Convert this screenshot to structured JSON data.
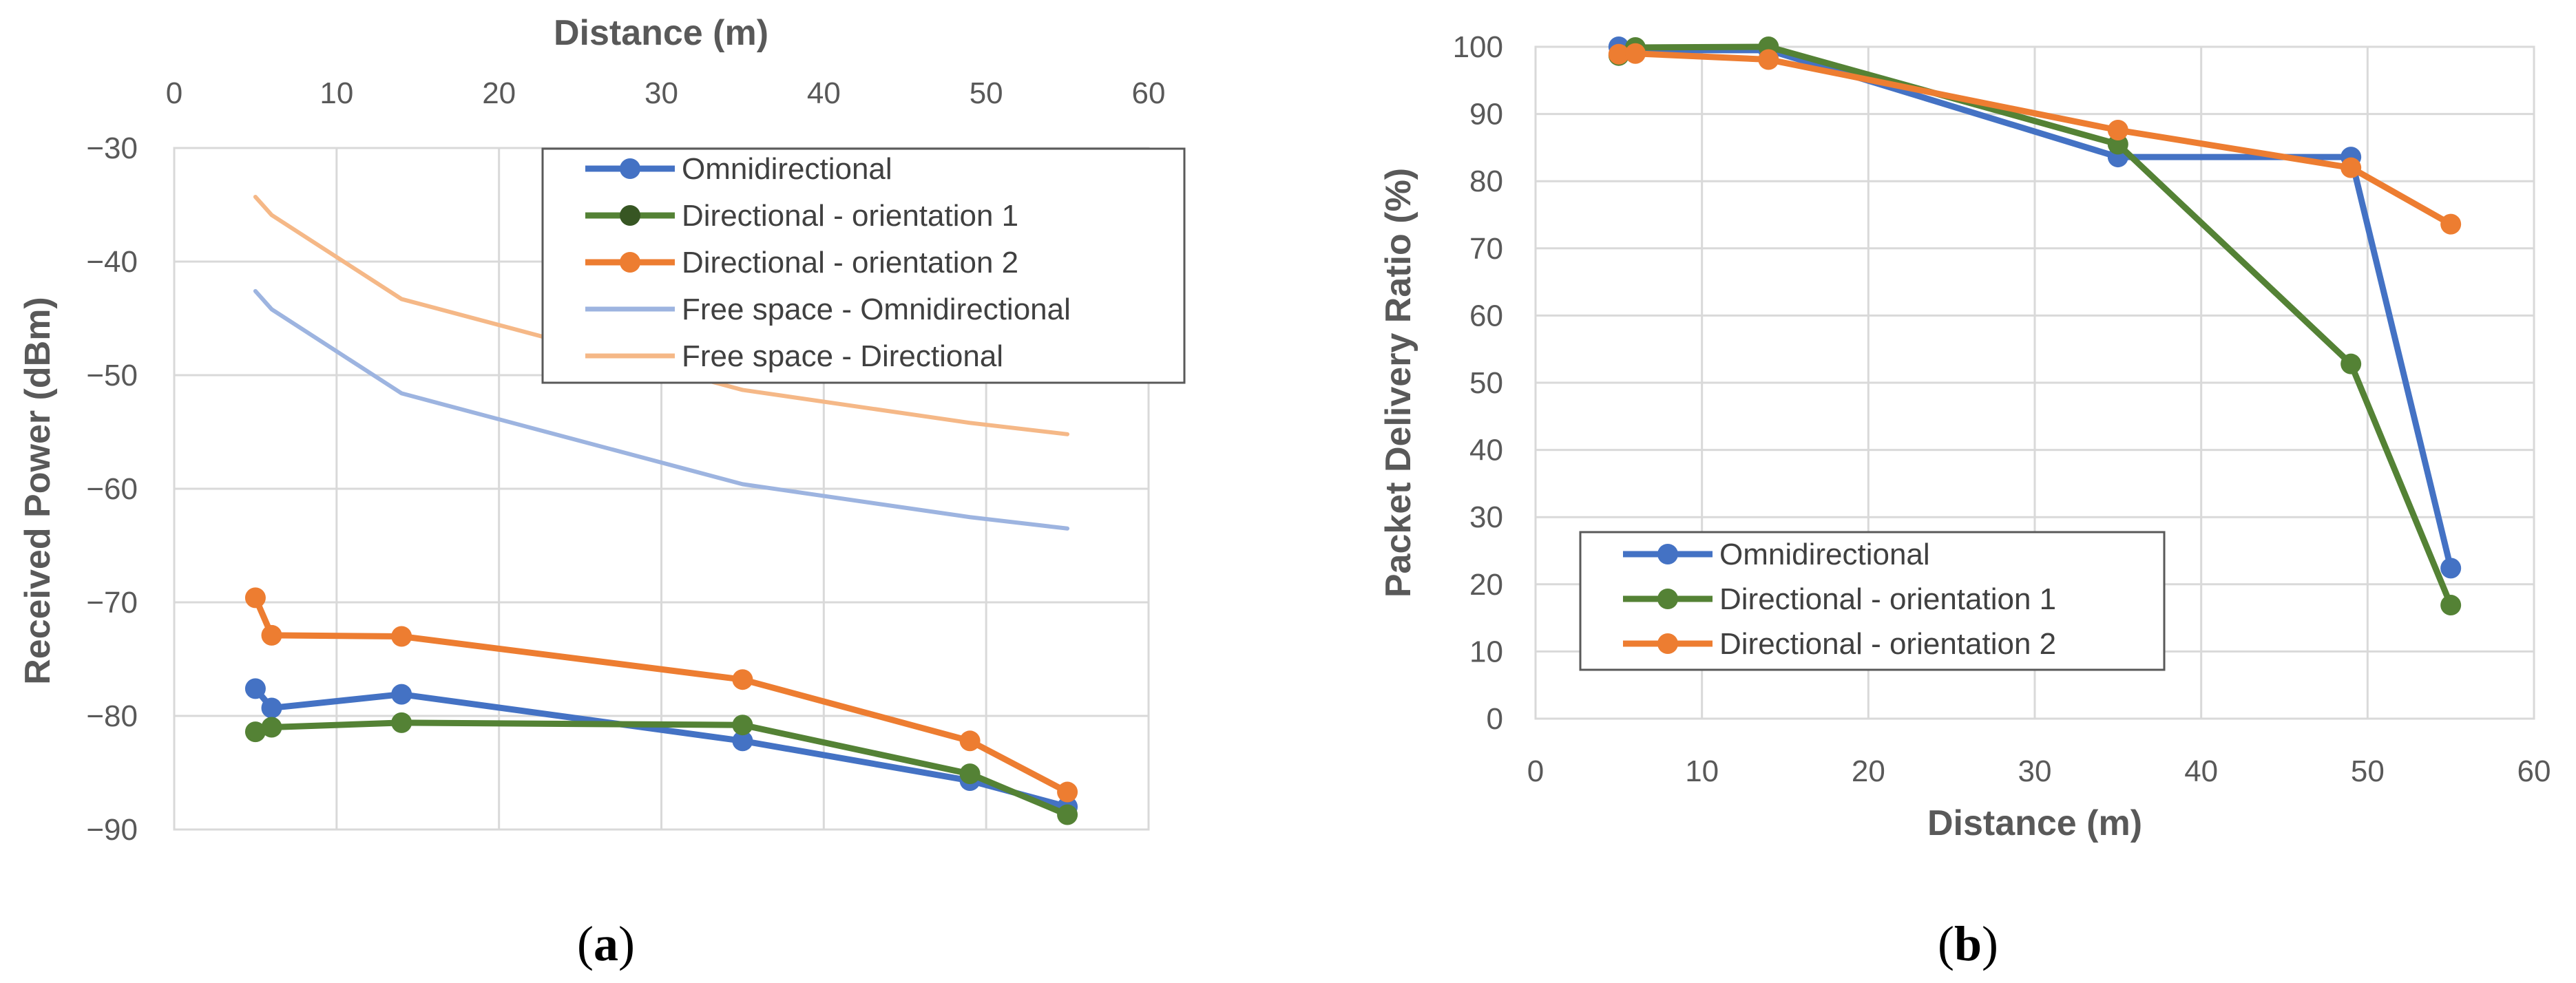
{
  "chart_data": [
    {
      "type": "line",
      "panel_label": "a",
      "xlabel": "Distance (m)",
      "ylabel": "Received Power  (dBm)",
      "xlim": [
        0,
        60
      ],
      "ylim": [
        -90,
        -30
      ],
      "xticks": [
        0,
        10,
        20,
        30,
        40,
        50,
        60
      ],
      "yticks": [
        -30,
        -40,
        -50,
        -60,
        -70,
        -80,
        -90
      ],
      "ytick_labels": [
        "−30",
        "−40",
        "−50",
        "−60",
        "−70",
        "−80",
        "−90"
      ],
      "x_axis_position": "top",
      "grid": true,
      "legend_position": "top-right",
      "series": [
        {
          "name": "Omnidirectional",
          "color": "#4472C4",
          "markers": true,
          "x": [
            5,
            6,
            14,
            35,
            49,
            55
          ],
          "y": [
            -77.6,
            -79.3,
            -78.1,
            -82.2,
            -85.7,
            -88
          ]
        },
        {
          "name": "Directional - orientation 1",
          "color": "#548235",
          "markers": true,
          "x": [
            5,
            6,
            14,
            35,
            49,
            55
          ],
          "y": [
            -81.4,
            -81,
            -80.6,
            -80.8,
            -85.1,
            -88.7
          ]
        },
        {
          "name": "Directional - orientation 2",
          "color": "#ED7D31",
          "markers": true,
          "x": [
            5,
            6,
            14,
            35,
            49,
            55
          ],
          "y": [
            -69.6,
            -72.9,
            -73,
            -76.8,
            -82.2,
            -86.7
          ]
        },
        {
          "name": "Free space - Omnidirectional",
          "color": "#9DB4E0",
          "markers": false,
          "x": [
            5,
            6,
            14,
            35,
            49,
            55
          ],
          "y": [
            -42.6,
            -44.2,
            -51.6,
            -59.6,
            -62.5,
            -63.5
          ]
        },
        {
          "name": "Free space - Directional",
          "color": "#F5B887",
          "markers": false,
          "x": [
            5,
            6,
            14,
            35,
            49,
            55
          ],
          "y": [
            -34.3,
            -35.9,
            -43.3,
            -51.3,
            -54.2,
            -55.2
          ]
        }
      ]
    },
    {
      "type": "line",
      "panel_label": "b",
      "xlabel": "Distance (m)",
      "ylabel": "Packet Delivery Ratio (%)",
      "xlim": [
        0,
        60
      ],
      "ylim": [
        0,
        100
      ],
      "xticks": [
        0,
        10,
        20,
        30,
        40,
        50,
        60
      ],
      "yticks": [
        0,
        10,
        20,
        30,
        40,
        50,
        60,
        70,
        80,
        90,
        100
      ],
      "ytick_labels": [
        "0",
        "10",
        "20",
        "30",
        "40",
        "50",
        "60",
        "70",
        "80",
        "90",
        "100"
      ],
      "x_axis_position": "bottom",
      "grid": true,
      "legend_position": "bottom-left",
      "series": [
        {
          "name": "Omnidirectional",
          "color": "#4472C4",
          "markers": true,
          "x": [
            5,
            6,
            14,
            35,
            49,
            55
          ],
          "y": [
            100,
            99.5,
            99.5,
            83.6,
            83.6,
            22.4
          ]
        },
        {
          "name": "Directional - orientation 1",
          "color": "#548235",
          "markers": true,
          "x": [
            5,
            6,
            14,
            35,
            49,
            55
          ],
          "y": [
            98.7,
            99.9,
            100,
            85.5,
            52.8,
            16.9
          ]
        },
        {
          "name": "Directional - orientation 2",
          "color": "#ED7D31",
          "markers": true,
          "x": [
            5,
            6,
            14,
            35,
            49,
            55
          ],
          "y": [
            98.9,
            99,
            98.1,
            87.6,
            82,
            73.6
          ]
        }
      ]
    }
  ]
}
